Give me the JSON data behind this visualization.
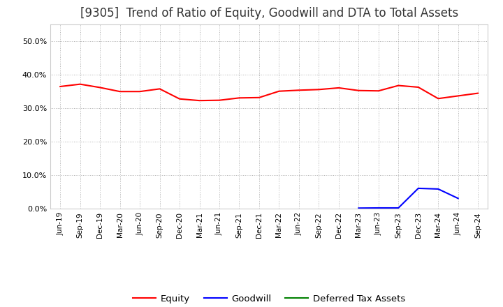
{
  "title": "[9305]  Trend of Ratio of Equity, Goodwill and DTA to Total Assets",
  "x_labels": [
    "Jun-19",
    "Sep-19",
    "Dec-19",
    "Mar-20",
    "Jun-20",
    "Sep-20",
    "Dec-20",
    "Mar-21",
    "Jun-21",
    "Sep-21",
    "Dec-21",
    "Mar-22",
    "Jun-22",
    "Sep-22",
    "Dec-22",
    "Mar-23",
    "Jun-23",
    "Sep-23",
    "Dec-23",
    "Mar-24",
    "Jun-24",
    "Sep-24"
  ],
  "equity": [
    36.5,
    37.2,
    36.2,
    35.0,
    35.0,
    35.8,
    32.8,
    32.3,
    32.4,
    33.1,
    33.2,
    35.1,
    35.4,
    35.6,
    36.1,
    35.3,
    35.2,
    36.8,
    36.3,
    32.9,
    33.7,
    34.5
  ],
  "goodwill": [
    null,
    null,
    null,
    null,
    null,
    null,
    null,
    null,
    null,
    null,
    null,
    null,
    null,
    null,
    null,
    0.2,
    0.25,
    0.25,
    6.1,
    5.9,
    3.1,
    null
  ],
  "dta": [
    null,
    null,
    null,
    null,
    null,
    null,
    null,
    null,
    null,
    null,
    null,
    null,
    null,
    null,
    null,
    null,
    null,
    null,
    null,
    null,
    null,
    null
  ],
  "equity_color": "#ff0000",
  "goodwill_color": "#0000ff",
  "dta_color": "#008000",
  "background_color": "#ffffff",
  "plot_bg_color": "#ffffff",
  "grid_color": "#b0b0b0",
  "ylim": [
    0,
    55
  ],
  "yticks": [
    0,
    10,
    20,
    30,
    40,
    50
  ],
  "title_fontsize": 12,
  "legend_labels": [
    "Equity",
    "Goodwill",
    "Deferred Tax Assets"
  ]
}
